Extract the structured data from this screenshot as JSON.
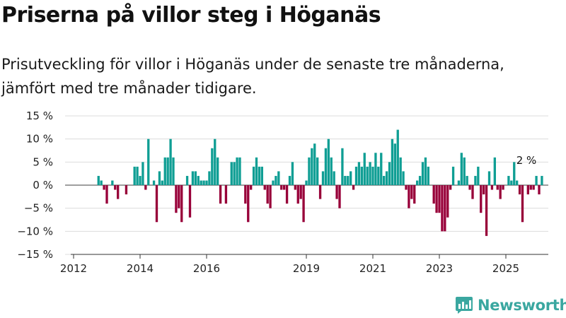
{
  "title": "Priserna på villor steg i Höganäs",
  "subtitle": "Prisutveckling för villor i Höganäs under de senaste tre månaderna, jämfört med tre månader tidigare.",
  "brand": {
    "name": "Newsworthy",
    "color": "#3aa7a0"
  },
  "colors": {
    "positive": "#0f9e94",
    "negative": "#980039"
  },
  "chart_data": {
    "type": "bar",
    "title": "Priserna på villor steg i Höganäs",
    "xlabel": "",
    "ylabel": "",
    "ylim": [
      -15,
      15
    ],
    "yticks": [
      15,
      10,
      5,
      0,
      -5,
      -10,
      -15
    ],
    "ytick_labels": [
      "15 %",
      "10 %",
      "5 %",
      "0 %",
      "−5 %",
      "−10 %",
      "−15 %"
    ],
    "xticks": [
      2012,
      2014,
      2016,
      2019,
      2021,
      2023,
      2025
    ],
    "xtick_labels": [
      "2012",
      "2014",
      "2016",
      "2019",
      "2021",
      "2023",
      "2025"
    ],
    "grid": true,
    "annotation": "2 %",
    "x_start": "2012-10",
    "x_step": "month",
    "values": [
      2,
      1,
      -1,
      -4,
      0,
      1,
      -1,
      -3,
      0,
      0,
      -2,
      0,
      0,
      4,
      4,
      2,
      5,
      -1,
      10,
      0,
      1,
      -8,
      3,
      1,
      6,
      6,
      10,
      6,
      -6,
      -5,
      -8,
      0,
      2,
      -7,
      3,
      3,
      2,
      1,
      1,
      1,
      3,
      8,
      10,
      6,
      -4,
      0,
      -4,
      0,
      5,
      5,
      6,
      6,
      0,
      -4,
      -8,
      -1,
      4,
      6,
      4,
      4,
      -1,
      -4,
      -5,
      1,
      2,
      3,
      -1,
      -1,
      -4,
      2,
      5,
      -1,
      -4,
      -3,
      -8,
      1,
      6,
      8,
      9,
      6,
      -3,
      3,
      8,
      10,
      6,
      3,
      -3,
      -5,
      8,
      2,
      2,
      3,
      -1,
      4,
      5,
      4,
      7,
      4,
      5,
      4,
      7,
      4,
      7,
      2,
      3,
      5,
      10,
      9,
      12,
      6,
      3,
      -1,
      -5,
      -3,
      -4,
      1,
      2,
      5,
      6,
      4,
      0,
      -4,
      -6,
      -6,
      -10,
      -10,
      -7,
      -1,
      4,
      0,
      1,
      7,
      6,
      2,
      -1,
      -3,
      2,
      4,
      -6,
      -2,
      -11,
      3,
      -1,
      6,
      -1,
      -3,
      -1,
      0,
      2,
      1,
      5,
      1,
      -2,
      -8,
      0,
      -2,
      -1,
      -1,
      2,
      -2,
      2
    ]
  }
}
